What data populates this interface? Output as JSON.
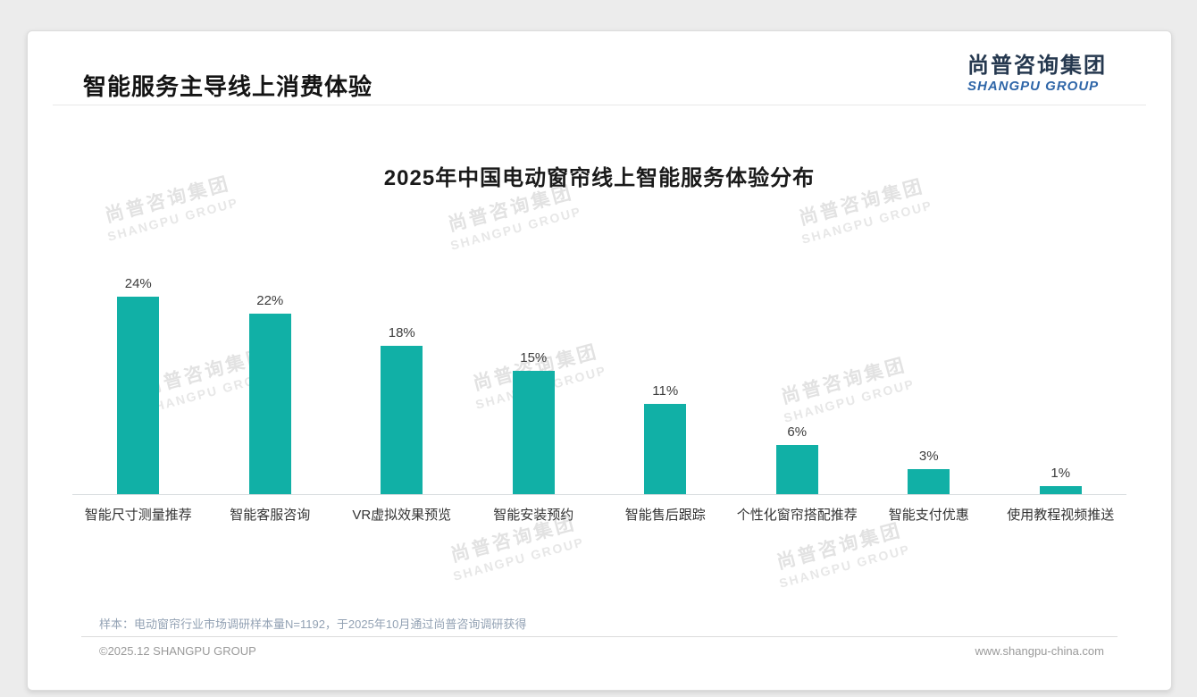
{
  "page": {
    "title": "智能服务主导线上消费体验"
  },
  "logo": {
    "cn": "尚普咨询集团",
    "en": "SHANGPU GROUP"
  },
  "watermark": {
    "cn": "尚普咨询集团",
    "en": "SHANGPU GROUP"
  },
  "chart_data": {
    "type": "bar",
    "title": "2025年中国电动窗帘线上智能服务体验分布",
    "categories": [
      "智能尺寸测量推荐",
      "智能客服咨询",
      "VR虚拟效果预览",
      "智能安装预约",
      "智能售后跟踪",
      "个性化窗帘搭配推荐",
      "智能支付优惠",
      "使用教程视频推送"
    ],
    "values": [
      24,
      22,
      18,
      15,
      11,
      6,
      3,
      1
    ],
    "value_labels": [
      "24%",
      "22%",
      "18%",
      "15%",
      "11%",
      "6%",
      "3%",
      "1%"
    ],
    "xlabel": "",
    "ylabel": "",
    "ylim": [
      0,
      25
    ],
    "grid": false,
    "legend": "none",
    "bar_color": "#11b0a6",
    "axis_line_color": "#d8dcde"
  },
  "footnote": "样本：电动窗帘行业市场调研样本量N=1192，于2025年10月通过尚普咨询调研获得",
  "footer": {
    "left": "©2025.12 SHANGPU GROUP",
    "right": "www.shangpu-china.com"
  }
}
